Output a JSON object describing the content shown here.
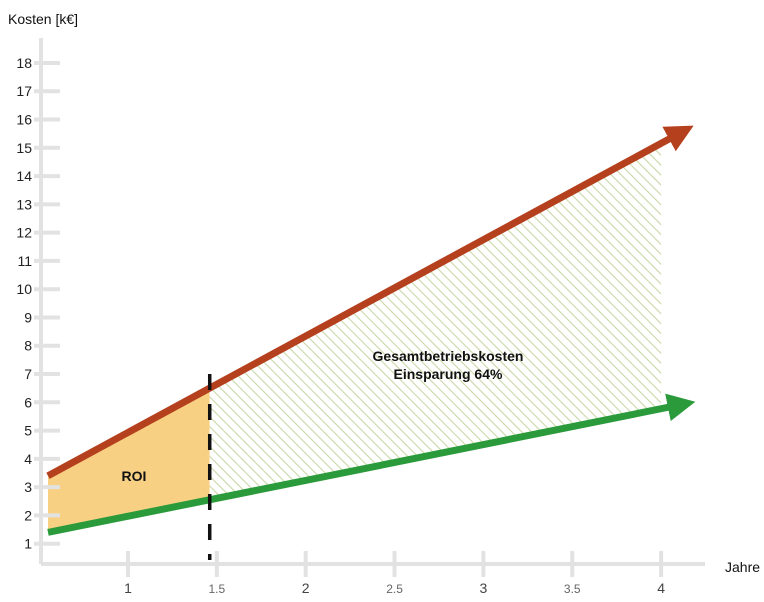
{
  "chart_data": {
    "type": "line",
    "title": "",
    "ylabel": "Kosten [k€]",
    "xlabel": "Jahre",
    "xlim": [
      0.55,
      4.05
    ],
    "ylim": [
      0.6,
      18.6
    ],
    "y_ticks": [
      "1",
      "2",
      "3",
      "4",
      "5",
      "6",
      "7",
      "8",
      "9",
      "10",
      "11",
      "12",
      "13",
      "14",
      "15",
      "16",
      "17",
      "18"
    ],
    "x_ticks": [
      {
        "value": 1,
        "label": "1",
        "minor": false
      },
      {
        "value": 1.5,
        "label": "1.5",
        "minor": true
      },
      {
        "value": 2,
        "label": "2",
        "minor": false
      },
      {
        "value": 2.5,
        "label": "2.5",
        "minor": true
      },
      {
        "value": 3,
        "label": "3",
        "minor": false
      },
      {
        "value": 3.5,
        "label": "3.5",
        "minor": true
      },
      {
        "value": 4,
        "label": "4",
        "minor": false
      }
    ],
    "grid": false,
    "series": [
      {
        "x": [
          0.55,
          4.1
        ],
        "y": [
          3.4,
          15.5
        ],
        "color": "#b5401d"
      },
      {
        "x": [
          0.55,
          4.1
        ],
        "y": [
          1.4,
          5.9
        ],
        "color": "#2a9a3a"
      }
    ],
    "break_even_x": 1.46,
    "annotations": {
      "roi": "ROI",
      "savings_line1": "Gesamtbetriebskosten",
      "savings_line2": "Einsparung 64%"
    },
    "colors": {
      "roi_fill": "#f7d084",
      "savings_hatch": "#c9d7a6",
      "axis": "#e2e2e2"
    }
  }
}
